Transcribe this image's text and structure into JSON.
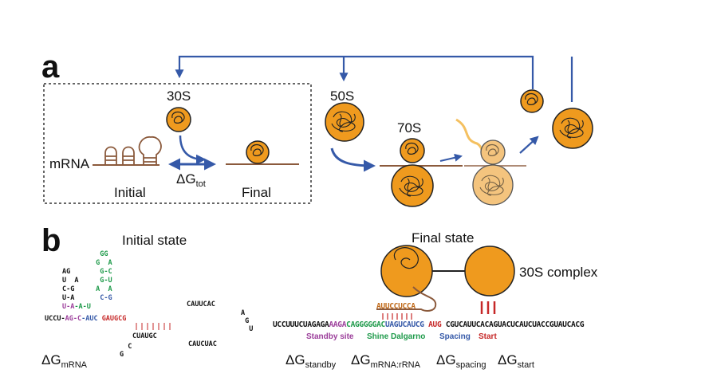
{
  "panel_a": {
    "label": "a",
    "ribosome_30s": "30S",
    "ribosome_50s": "50S",
    "ribosome_70s": "70S",
    "mrna": "mRNA",
    "initial": "Initial",
    "final": "Final",
    "delta_g_symbol": "ΔG",
    "delta_g_sub": "tot"
  },
  "panel_b": {
    "label": "b",
    "initial_state": "Initial state",
    "final_state": "Final state",
    "complex_label": "30S complex",
    "rrna_tail": "AUUCCUCCA",
    "sequence": {
      "part1": "UCCUUUCUAGAGA",
      "standby": "AAGA",
      "shine_dalgarno": "CAGGGGGAC",
      "spacing": "UAGUCAUCG",
      "start": "AUG",
      "part2": "CGUCAUUCACAGUACUCAUCUACCGUAUCACG"
    },
    "region_labels": {
      "standby": "Standby site",
      "shine_dalgarno": "Shine Dalgarno",
      "spacing": "Spacing",
      "start": "Start"
    },
    "structure": {
      "stem_row": "UCCU-",
      "main_row_mid": "AG-C",
      "main_row_right": "AUC",
      "main_row_red": "GAUGCG",
      "loop_top": "CAUUCAC",
      "loop_bottom_left": "CUAUGC",
      "loop_bottom_right": "CAUCUAC",
      "loop_right": "AGU"
    },
    "delta_g_mrna": {
      "symbol": "ΔG",
      "sub": "mRNA"
    },
    "delta_g_terms": [
      {
        "symbol": "ΔG",
        "sub": "standby"
      },
      {
        "symbol": "ΔG",
        "sub": "mRNA:rRNA"
      },
      {
        "symbol": "ΔG",
        "sub": "spacing"
      },
      {
        "symbol": "ΔG",
        "sub": "start"
      }
    ]
  },
  "colors": {
    "ribosome_fill": "#ef9a1e",
    "ribosome_fill_light": "#f4c47e",
    "arrow_blue": "#3559a8",
    "mrna_brown": "#8b5a3c",
    "standby_purple": "#9b3d9a",
    "sd_green": "#1e9a4a",
    "spacing_blue": "#3559a8",
    "start_red": "#c62828",
    "rrna_orange": "#c06a1a"
  }
}
